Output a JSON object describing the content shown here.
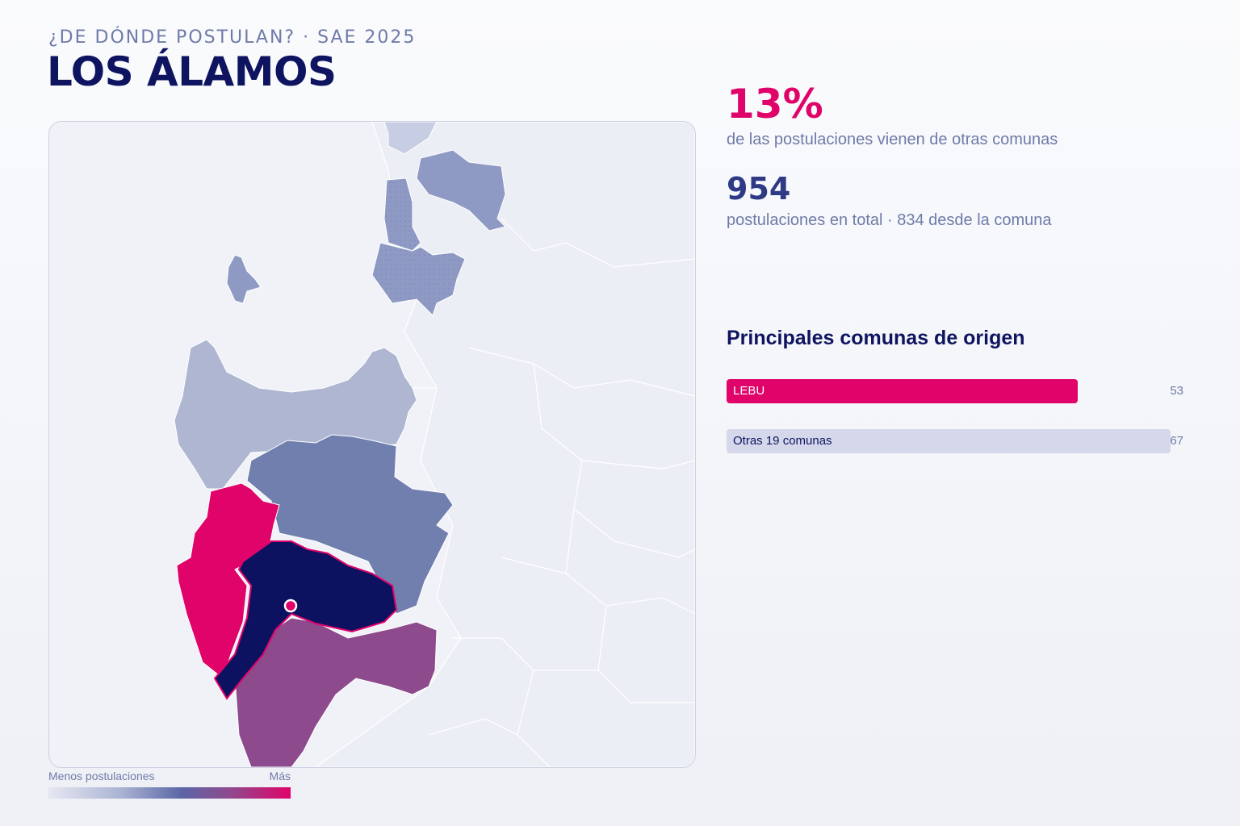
{
  "header": {
    "kicker": "¿DE DÓNDE POSTULAN? · SAE 2025",
    "title": "LOS ÁLAMOS"
  },
  "stats": {
    "external_pct": "13%",
    "external_pct_caption": "de las postulaciones vienen de otras comunas",
    "total": "954",
    "total_caption": "postulaciones en total · 834 desde la comuna"
  },
  "origins": {
    "title": "Principales comunas de origen",
    "max_value": 67,
    "items": [
      {
        "label": "LEBU",
        "value": 53,
        "color": "#e0046a"
      },
      {
        "label": "Otras 19 comunas",
        "value": 67,
        "color": "#d4d8ea"
      }
    ]
  },
  "legend": {
    "low_label": "Menos postulaciones",
    "high_label": "Más"
  },
  "colors": {
    "accent": "#e0046a",
    "navy": "#0f1460",
    "muted": "#6f7ba8",
    "home_commune": "#0c1260",
    "mid_commune": "#717fae",
    "south_commune": "#8d4a8d",
    "light_commune": "#aeb6d2"
  }
}
